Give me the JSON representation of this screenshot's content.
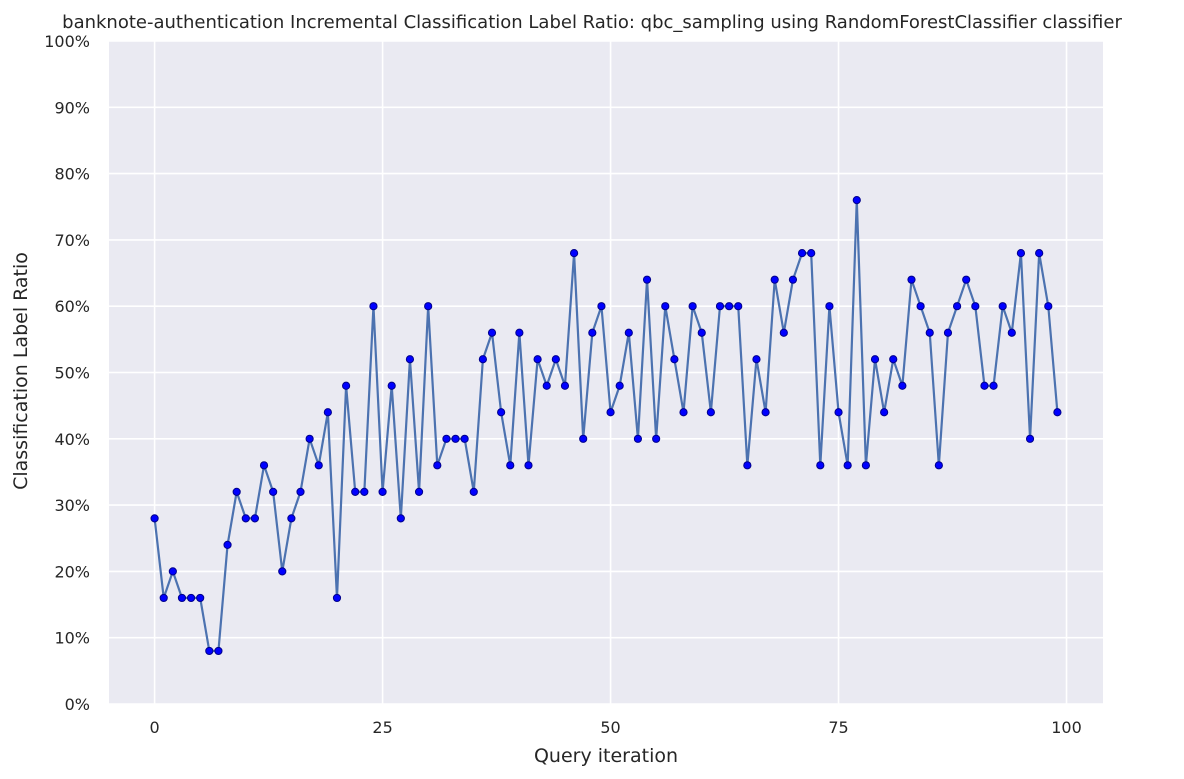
{
  "chart_data": {
    "type": "line",
    "title": "banknote-authentication Incremental Classification Label Ratio: qbc_sampling using RandomForestClassifier classifier",
    "xlabel": "Query iteration",
    "ylabel": "Classification Label Ratio",
    "xlim": [
      -5,
      104
    ],
    "ylim": [
      0,
      1
    ],
    "xticks": [
      0,
      25,
      50,
      75,
      100
    ],
    "yticks": [
      0,
      0.1,
      0.2,
      0.3,
      0.4,
      0.5,
      0.6,
      0.7,
      0.8,
      0.9,
      1.0
    ],
    "ytick_labels": [
      "0%",
      "10%",
      "20%",
      "30%",
      "40%",
      "50%",
      "60%",
      "70%",
      "80%",
      "90%",
      "100%"
    ],
    "grid": true,
    "background": "#eaeaf2",
    "line_color": "#4c72b0",
    "marker_color": "#0000ff",
    "marker_edge": "#00008b",
    "x": [
      0,
      1,
      2,
      3,
      4,
      5,
      6,
      7,
      8,
      9,
      10,
      11,
      12,
      13,
      14,
      15,
      16,
      17,
      18,
      19,
      20,
      21,
      22,
      23,
      24,
      25,
      26,
      27,
      28,
      29,
      30,
      31,
      32,
      33,
      34,
      35,
      36,
      37,
      38,
      39,
      40,
      41,
      42,
      43,
      44,
      45,
      46,
      47,
      48,
      49,
      50,
      51,
      52,
      53,
      54,
      55,
      56,
      57,
      58,
      59,
      60,
      61,
      62,
      63,
      64,
      65,
      66,
      67,
      68,
      69,
      70,
      71,
      72,
      73,
      74,
      75,
      76,
      77,
      78,
      79,
      80,
      81,
      82,
      83,
      84,
      85,
      86,
      87,
      88,
      89,
      90,
      91,
      92,
      93,
      94,
      95,
      96,
      97,
      98,
      99
    ],
    "y": [
      0.28,
      0.16,
      0.2,
      0.16,
      0.16,
      0.16,
      0.08,
      0.08,
      0.24,
      0.32,
      0.28,
      0.28,
      0.36,
      0.32,
      0.2,
      0.28,
      0.32,
      0.4,
      0.36,
      0.44,
      0.16,
      0.48,
      0.32,
      0.32,
      0.6,
      0.32,
      0.48,
      0.28,
      0.52,
      0.32,
      0.6,
      0.36,
      0.4,
      0.4,
      0.4,
      0.32,
      0.52,
      0.56,
      0.44,
      0.36,
      0.56,
      0.36,
      0.52,
      0.48,
      0.52,
      0.48,
      0.68,
      0.4,
      0.56,
      0.6,
      0.44,
      0.48,
      0.56,
      0.4,
      0.64,
      0.4,
      0.6,
      0.52,
      0.44,
      0.6,
      0.56,
      0.44,
      0.6,
      0.6,
      0.6,
      0.36,
      0.52,
      0.44,
      0.64,
      0.56,
      0.64,
      0.68,
      0.68,
      0.36,
      0.6,
      0.44,
      0.36,
      0.76,
      0.36,
      0.52,
      0.44,
      0.52,
      0.48,
      0.64,
      0.6,
      0.56,
      0.36,
      0.56,
      0.6,
      0.64,
      0.6,
      0.48,
      0.48,
      0.6,
      0.56,
      0.68,
      0.4,
      0.68,
      0.6,
      0.44
    ]
  }
}
